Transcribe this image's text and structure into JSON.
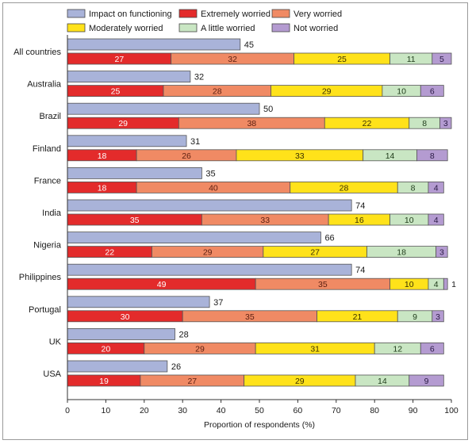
{
  "chart_data": {
    "type": "bar",
    "orientation": "horizontal",
    "xlabel": "Proportion of respondents (%)",
    "xlim": [
      0,
      100
    ],
    "xticks": [
      "0",
      "10",
      "20",
      "30",
      "40",
      "50",
      "60",
      "70",
      "80",
      "90",
      "100"
    ],
    "categories": [
      "All countries",
      "Australia",
      "Brazil",
      "Finland",
      "France",
      "India",
      "Nigeria",
      "Philippines",
      "Portugal",
      "UK",
      "USA"
    ],
    "impact": {
      "name": "Impact on functioning",
      "color": "#a9b3d9",
      "values": [
        45,
        32,
        50,
        31,
        35,
        74,
        66,
        74,
        37,
        28,
        26
      ]
    },
    "stacked_series": [
      {
        "name": "Extremely worried",
        "color": "#e32b2b",
        "label_color": "#ffffff",
        "values": [
          27,
          25,
          29,
          18,
          18,
          35,
          22,
          49,
          30,
          20,
          19
        ]
      },
      {
        "name": "Very worried",
        "color": "#f08a64",
        "label_color": "#5a1e10",
        "values": [
          32,
          28,
          38,
          26,
          40,
          33,
          29,
          35,
          35,
          29,
          27
        ]
      },
      {
        "name": "Moderately worried",
        "color": "#ffe21a",
        "label_color": "#3a3000",
        "values": [
          25,
          29,
          22,
          33,
          28,
          16,
          27,
          10,
          21,
          31,
          29
        ]
      },
      {
        "name": "A little worried",
        "color": "#c9e6c3",
        "label_color": "#1f3b1a",
        "values": [
          11,
          10,
          8,
          14,
          8,
          10,
          18,
          4,
          9,
          12,
          14
        ]
      },
      {
        "name": "Not worried",
        "color": "#b49bd1",
        "label_color": "#2a1a44",
        "values": [
          5,
          6,
          3,
          8,
          4,
          4,
          3,
          1,
          3,
          6,
          9
        ]
      }
    ],
    "legend_position": "top",
    "grid": false
  }
}
